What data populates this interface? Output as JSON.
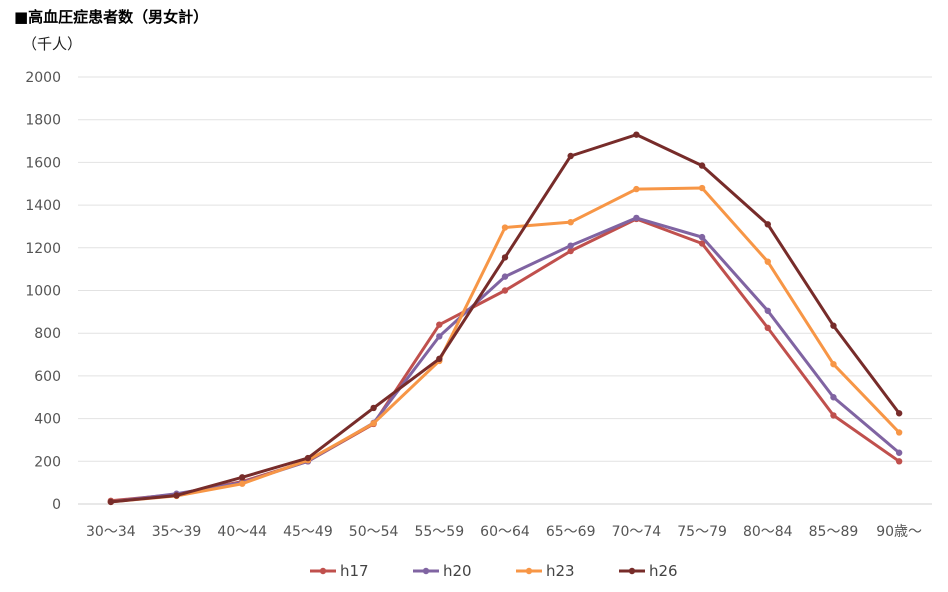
{
  "title": "■高血圧症患者数（男女計）",
  "unit_label": "（千人）",
  "chart_data": {
    "type": "line",
    "title": "■高血圧症患者数（男女計）",
    "ylabel": "（千人）",
    "xlabel": "",
    "ylim": [
      0,
      2000
    ],
    "yticks": [
      0,
      200,
      400,
      600,
      800,
      1000,
      1200,
      1400,
      1600,
      1800,
      2000
    ],
    "grid": true,
    "legend_position": "bottom",
    "categories": [
      "30～34",
      "35～39",
      "40～44",
      "45～49",
      "50～54",
      "55～59",
      "60～64",
      "65～69",
      "70～74",
      "75～79",
      "80～84",
      "85～89",
      "90歳～"
    ],
    "series": [
      {
        "name": "h17",
        "color": "#c0504d",
        "values": [
          15,
          45,
          105,
          200,
          375,
          840,
          1000,
          1185,
          1335,
          1220,
          825,
          415,
          200
        ]
      },
      {
        "name": "h20",
        "color": "#8064a2",
        "values": [
          10,
          48,
          100,
          200,
          380,
          785,
          1065,
          1210,
          1340,
          1250,
          905,
          500,
          240
        ]
      },
      {
        "name": "h23",
        "color": "#f79646",
        "values": [
          10,
          38,
          95,
          205,
          378,
          670,
          1295,
          1320,
          1475,
          1480,
          1135,
          655,
          335
        ]
      },
      {
        "name": "h26",
        "color": "#772c2a",
        "values": [
          10,
          40,
          125,
          215,
          450,
          680,
          1155,
          1630,
          1730,
          1585,
          1310,
          835,
          425
        ]
      }
    ]
  }
}
